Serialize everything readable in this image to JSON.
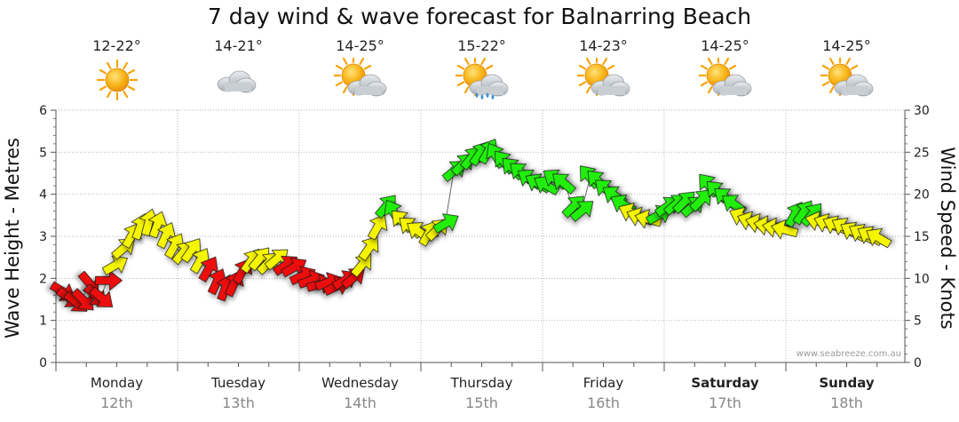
{
  "title": "7 day wind & wave forecast for Balnarring Beach",
  "days": [
    {
      "name": "Monday",
      "date": "12th",
      "temp": "12-22°",
      "icon": "sunny-icon",
      "bold": false
    },
    {
      "name": "Tuesday",
      "date": "13th",
      "temp": "14-21°",
      "icon": "cloudy-icon",
      "bold": false
    },
    {
      "name": "Wednesday",
      "date": "14th",
      "temp": "14-25°",
      "icon": "partly-cloudy-icon",
      "bold": false
    },
    {
      "name": "Thursday",
      "date": "15th",
      "temp": "15-22°",
      "icon": "showers-icon",
      "bold": false
    },
    {
      "name": "Friday",
      "date": "16th",
      "temp": "14-23°",
      "icon": "partly-cloudy-icon",
      "bold": false
    },
    {
      "name": "Saturday",
      "date": "17th",
      "temp": "14-25°",
      "icon": "partly-cloudy-icon",
      "bold": true
    },
    {
      "name": "Sunday",
      "date": "18th",
      "temp": "14-25°",
      "icon": "partly-cloudy-icon",
      "bold": true
    }
  ],
  "credit": "www.seabreeze.com.au",
  "colors": {
    "red": "#ee1111",
    "yellow": "#f5f500",
    "green": "#22ee11",
    "sun": "#f7a40a",
    "cloud": "#bfc4c9"
  },
  "chart_data": {
    "type": "line",
    "title": "7 day wind & wave forecast for Balnarring Beach",
    "ylabel_left": "Wave Height - Metres",
    "ylabel_right": "Wind Speed - Knots",
    "ylim_left": [
      0,
      6
    ],
    "ylim_right": [
      0,
      30
    ],
    "yticks_left": [
      "0",
      "1",
      "2",
      "3",
      "4",
      "5",
      "6"
    ],
    "yticks_right": [
      "0",
      "5",
      "10",
      "15",
      "20",
      "25",
      "30"
    ],
    "x_unit": "day index (0 = Monday 12th 00:00)",
    "grid": true,
    "series": [
      {
        "points": [
          {
            "x": 0.05,
            "y": 1.7,
            "dir": 120,
            "band": "red"
          },
          {
            "x": 0.1,
            "y": 1.55,
            "dir": 125,
            "band": "red"
          },
          {
            "x": 0.16,
            "y": 1.45,
            "dir": 130,
            "band": "red"
          },
          {
            "x": 0.22,
            "y": 1.5,
            "dir": 135,
            "band": "red"
          },
          {
            "x": 0.27,
            "y": 1.9,
            "dir": 140,
            "band": "red"
          },
          {
            "x": 0.32,
            "y": 1.6,
            "dir": 135,
            "band": "red"
          },
          {
            "x": 0.37,
            "y": 1.55,
            "dir": 130,
            "band": "red"
          },
          {
            "x": 0.42,
            "y": 1.95,
            "dir": 90,
            "band": "red"
          },
          {
            "x": 0.48,
            "y": 2.3,
            "dir": 60,
            "band": "yellow"
          },
          {
            "x": 0.55,
            "y": 2.7,
            "dir": 50,
            "band": "yellow"
          },
          {
            "x": 0.62,
            "y": 3.0,
            "dir": 30,
            "band": "yellow"
          },
          {
            "x": 0.69,
            "y": 3.2,
            "dir": 20,
            "band": "yellow"
          },
          {
            "x": 0.76,
            "y": 3.3,
            "dir": 15,
            "band": "yellow"
          },
          {
            "x": 0.83,
            "y": 3.25,
            "dir": 20,
            "band": "yellow"
          },
          {
            "x": 0.9,
            "y": 3.0,
            "dir": 25,
            "band": "yellow"
          },
          {
            "x": 0.97,
            "y": 2.75,
            "dir": 30,
            "band": "yellow"
          },
          {
            "x": 1.04,
            "y": 2.6,
            "dir": 40,
            "band": "yellow"
          },
          {
            "x": 1.11,
            "y": 2.65,
            "dir": 35,
            "band": "yellow"
          },
          {
            "x": 1.18,
            "y": 2.4,
            "dir": 30,
            "band": "yellow"
          },
          {
            "x": 1.25,
            "y": 2.2,
            "dir": 30,
            "band": "red"
          },
          {
            "x": 1.32,
            "y": 1.9,
            "dir": 25,
            "band": "red"
          },
          {
            "x": 1.39,
            "y": 1.75,
            "dir": 20,
            "band": "red"
          },
          {
            "x": 1.46,
            "y": 1.85,
            "dir": 25,
            "band": "red"
          },
          {
            "x": 1.53,
            "y": 2.15,
            "dir": 30,
            "band": "red"
          },
          {
            "x": 1.6,
            "y": 2.4,
            "dir": 35,
            "band": "yellow"
          },
          {
            "x": 1.67,
            "y": 2.45,
            "dir": 40,
            "band": "yellow"
          },
          {
            "x": 1.74,
            "y": 2.35,
            "dir": 45,
            "band": "yellow"
          },
          {
            "x": 1.81,
            "y": 2.45,
            "dir": 50,
            "band": "yellow"
          },
          {
            "x": 1.88,
            "y": 2.3,
            "dir": 55,
            "band": "red"
          },
          {
            "x": 1.95,
            "y": 2.25,
            "dir": 60,
            "band": "red"
          },
          {
            "x": 2.02,
            "y": 2.05,
            "dir": 65,
            "band": "red"
          },
          {
            "x": 2.09,
            "y": 1.95,
            "dir": 70,
            "band": "red"
          },
          {
            "x": 2.16,
            "y": 1.85,
            "dir": 75,
            "band": "red"
          },
          {
            "x": 2.23,
            "y": 1.9,
            "dir": 70,
            "band": "red"
          },
          {
            "x": 2.3,
            "y": 1.8,
            "dir": 65,
            "band": "red"
          },
          {
            "x": 2.37,
            "y": 1.95,
            "dir": 60,
            "band": "red"
          },
          {
            "x": 2.44,
            "y": 2.0,
            "dir": 50,
            "band": "red"
          },
          {
            "x": 2.51,
            "y": 2.3,
            "dir": 40,
            "band": "yellow"
          },
          {
            "x": 2.57,
            "y": 2.7,
            "dir": 35,
            "band": "yellow"
          },
          {
            "x": 2.64,
            "y": 3.2,
            "dir": 30,
            "band": "yellow"
          },
          {
            "x": 2.71,
            "y": 3.7,
            "dir": 40,
            "band": "green"
          },
          {
            "x": 2.78,
            "y": 3.55,
            "dir": 330,
            "band": "green"
          },
          {
            "x": 2.85,
            "y": 3.35,
            "dir": 315,
            "band": "yellow"
          },
          {
            "x": 2.92,
            "y": 3.2,
            "dir": 310,
            "band": "yellow"
          },
          {
            "x": 2.99,
            "y": 3.1,
            "dir": 305,
            "band": "yellow"
          },
          {
            "x": 3.06,
            "y": 3.05,
            "dir": 30,
            "band": "yellow"
          },
          {
            "x": 3.13,
            "y": 3.15,
            "dir": 45,
            "band": "yellow"
          },
          {
            "x": 3.2,
            "y": 3.3,
            "dir": 60,
            "band": "green"
          },
          {
            "x": 3.27,
            "y": 4.55,
            "dir": 50,
            "band": "green"
          },
          {
            "x": 3.34,
            "y": 4.7,
            "dir": 45,
            "band": "green"
          },
          {
            "x": 3.41,
            "y": 4.85,
            "dir": 40,
            "band": "green"
          },
          {
            "x": 3.48,
            "y": 4.95,
            "dir": 35,
            "band": "green"
          },
          {
            "x": 3.55,
            "y": 5.0,
            "dir": 30,
            "band": "green"
          },
          {
            "x": 3.62,
            "y": 4.9,
            "dir": 330,
            "band": "green"
          },
          {
            "x": 3.69,
            "y": 4.75,
            "dir": 320,
            "band": "green"
          },
          {
            "x": 3.76,
            "y": 4.6,
            "dir": 315,
            "band": "green"
          },
          {
            "x": 3.83,
            "y": 4.5,
            "dir": 310,
            "band": "green"
          },
          {
            "x": 3.9,
            "y": 4.35,
            "dir": 305,
            "band": "green"
          },
          {
            "x": 3.97,
            "y": 4.25,
            "dir": 300,
            "band": "green"
          },
          {
            "x": 4.04,
            "y": 4.2,
            "dir": 300,
            "band": "green"
          },
          {
            "x": 4.11,
            "y": 4.35,
            "dir": 305,
            "band": "green"
          },
          {
            "x": 4.18,
            "y": 4.25,
            "dir": 310,
            "band": "green"
          },
          {
            "x": 4.25,
            "y": 3.7,
            "dir": 45,
            "band": "green"
          },
          {
            "x": 4.32,
            "y": 3.6,
            "dir": 50,
            "band": "green"
          },
          {
            "x": 4.39,
            "y": 4.4,
            "dir": 320,
            "band": "green"
          },
          {
            "x": 4.46,
            "y": 4.3,
            "dir": 315,
            "band": "green"
          },
          {
            "x": 4.53,
            "y": 4.1,
            "dir": 310,
            "band": "green"
          },
          {
            "x": 4.6,
            "y": 3.95,
            "dir": 305,
            "band": "green"
          },
          {
            "x": 4.67,
            "y": 3.75,
            "dir": 300,
            "band": "green"
          },
          {
            "x": 4.74,
            "y": 3.55,
            "dir": 295,
            "band": "yellow"
          },
          {
            "x": 4.81,
            "y": 3.45,
            "dir": 290,
            "band": "yellow"
          },
          {
            "x": 4.88,
            "y": 3.4,
            "dir": 285,
            "band": "yellow"
          },
          {
            "x": 4.95,
            "y": 3.5,
            "dir": 60,
            "band": "green"
          },
          {
            "x": 5.02,
            "y": 3.7,
            "dir": 55,
            "band": "green"
          },
          {
            "x": 5.09,
            "y": 3.75,
            "dir": 50,
            "band": "green"
          },
          {
            "x": 5.16,
            "y": 3.8,
            "dir": 45,
            "band": "green"
          },
          {
            "x": 5.23,
            "y": 3.7,
            "dir": 50,
            "band": "green"
          },
          {
            "x": 5.3,
            "y": 3.85,
            "dir": 45,
            "band": "green"
          },
          {
            "x": 5.37,
            "y": 4.2,
            "dir": 320,
            "band": "green"
          },
          {
            "x": 5.44,
            "y": 4.05,
            "dir": 315,
            "band": "green"
          },
          {
            "x": 5.51,
            "y": 3.9,
            "dir": 310,
            "band": "green"
          },
          {
            "x": 5.58,
            "y": 3.75,
            "dir": 305,
            "band": "green"
          },
          {
            "x": 5.65,
            "y": 3.45,
            "dir": 295,
            "band": "yellow"
          },
          {
            "x": 5.72,
            "y": 3.35,
            "dir": 290,
            "band": "yellow"
          },
          {
            "x": 5.79,
            "y": 3.3,
            "dir": 285,
            "band": "yellow"
          },
          {
            "x": 5.86,
            "y": 3.25,
            "dir": 280,
            "band": "yellow"
          },
          {
            "x": 5.93,
            "y": 3.2,
            "dir": 280,
            "band": "yellow"
          },
          {
            "x": 6.0,
            "y": 3.15,
            "dir": 285,
            "band": "yellow"
          },
          {
            "x": 6.07,
            "y": 3.5,
            "dir": 30,
            "band": "green"
          },
          {
            "x": 6.14,
            "y": 3.55,
            "dir": 35,
            "band": "green"
          },
          {
            "x": 6.21,
            "y": 3.5,
            "dir": 40,
            "band": "green"
          },
          {
            "x": 6.28,
            "y": 3.35,
            "dir": 285,
            "band": "yellow"
          },
          {
            "x": 6.35,
            "y": 3.3,
            "dir": 290,
            "band": "yellow"
          },
          {
            "x": 6.42,
            "y": 3.25,
            "dir": 295,
            "band": "yellow"
          },
          {
            "x": 6.49,
            "y": 3.2,
            "dir": 300,
            "band": "yellow"
          },
          {
            "x": 6.56,
            "y": 3.1,
            "dir": 300,
            "band": "yellow"
          },
          {
            "x": 6.63,
            "y": 3.05,
            "dir": 300,
            "band": "yellow"
          },
          {
            "x": 6.7,
            "y": 3.0,
            "dir": 300,
            "band": "yellow"
          },
          {
            "x": 6.77,
            "y": 2.95,
            "dir": 300,
            "band": "yellow"
          }
        ]
      }
    ]
  }
}
